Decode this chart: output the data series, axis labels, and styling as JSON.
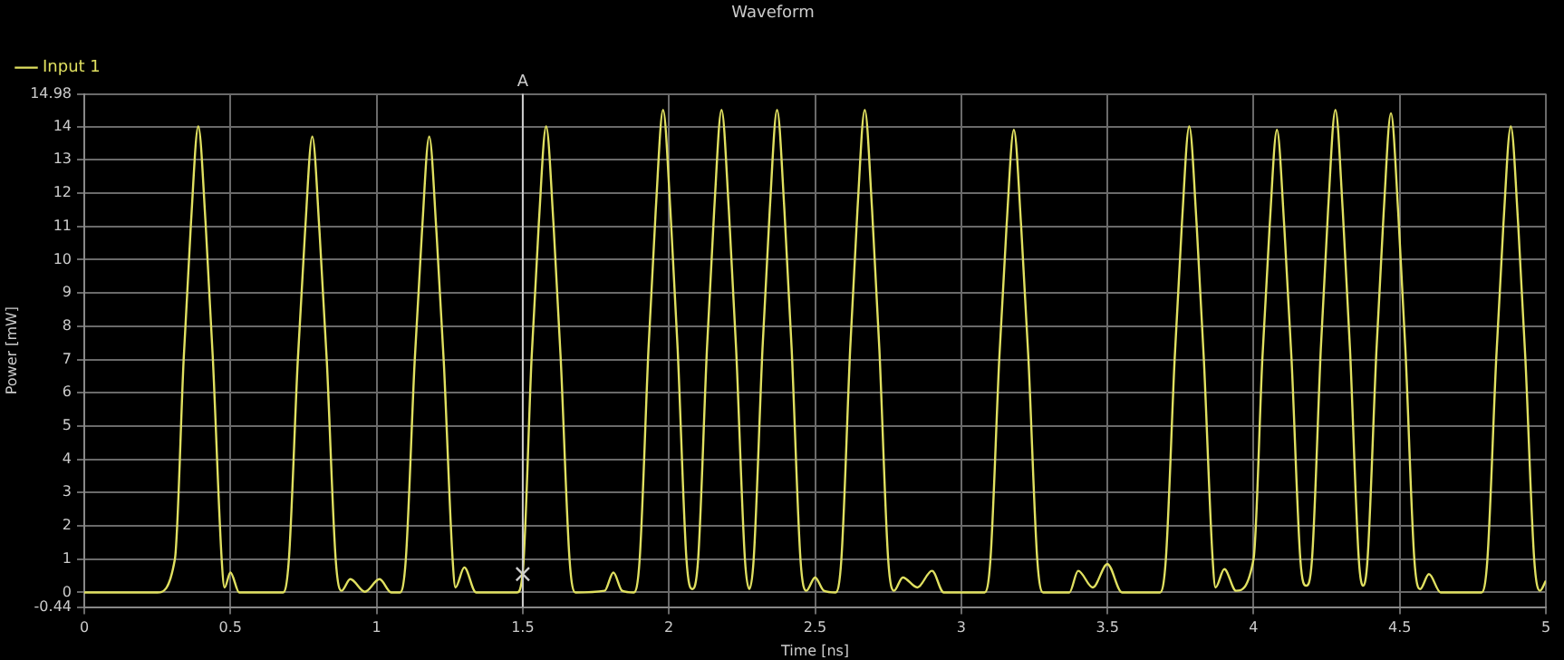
{
  "chart_data": {
    "type": "line",
    "title": "Waveform",
    "xlabel": "Time [ns]",
    "ylabel": "Power [mW]",
    "xlim": [
      0,
      5
    ],
    "xticks": [
      0,
      0.5,
      1,
      1.5,
      2,
      2.5,
      3,
      3.5,
      4,
      4.5,
      5
    ],
    "ylim": [
      -0.44,
      14.98
    ],
    "yticks": [
      -0.44,
      0,
      1,
      2,
      3,
      4,
      5,
      6,
      7,
      8,
      9,
      10,
      11,
      12,
      13,
      14,
      14.98
    ],
    "grid": true,
    "legend": "top left",
    "marker": "none",
    "line_style": "solid",
    "ref_lines": [
      {
        "axis": "x",
        "value": 1.5,
        "label": "A",
        "color": "#cccccc"
      }
    ],
    "series": [
      {
        "name": "Input 1",
        "color": "#e0e060",
        "x": [
          0,
          0.25,
          0.31,
          0.34,
          0.365,
          0.39,
          0.415,
          0.44,
          0.47,
          0.48,
          0.5,
          0.53,
          0.68,
          0.7,
          0.73,
          0.755,
          0.78,
          0.805,
          0.83,
          0.86,
          0.88,
          0.91,
          0.96,
          1.01,
          1.05,
          1.08,
          1.1,
          1.13,
          1.155,
          1.18,
          1.205,
          1.23,
          1.26,
          1.27,
          1.3,
          1.34,
          1.48,
          1.5,
          1.53,
          1.555,
          1.58,
          1.605,
          1.63,
          1.66,
          1.68,
          1.78,
          1.81,
          1.84,
          1.88,
          1.9,
          1.93,
          1.955,
          1.98,
          2.005,
          2.03,
          2.06,
          2.08,
          2.1,
          2.13,
          2.155,
          2.18,
          2.205,
          2.23,
          2.26,
          2.275,
          2.29,
          2.32,
          2.345,
          2.37,
          2.395,
          2.42,
          2.45,
          2.47,
          2.5,
          2.53,
          2.57,
          2.59,
          2.62,
          2.645,
          2.67,
          2.695,
          2.72,
          2.75,
          2.77,
          2.8,
          2.85,
          2.9,
          2.94,
          3.08,
          3.1,
          3.13,
          3.155,
          3.18,
          3.205,
          3.23,
          3.26,
          3.28,
          3.37,
          3.4,
          3.45,
          3.5,
          3.55,
          3.68,
          3.7,
          3.73,
          3.755,
          3.78,
          3.805,
          3.83,
          3.86,
          3.87,
          3.9,
          3.94,
          4.0,
          4.03,
          4.055,
          4.08,
          4.105,
          4.13,
          4.16,
          4.18,
          4.2,
          4.23,
          4.255,
          4.28,
          4.305,
          4.33,
          4.36,
          4.375,
          4.39,
          4.42,
          4.445,
          4.47,
          4.495,
          4.52,
          4.55,
          4.57,
          4.6,
          4.64,
          4.78,
          4.8,
          4.83,
          4.855,
          4.88,
          4.905,
          4.93,
          4.96,
          4.98,
          5.0
        ],
        "values": [
          0,
          0,
          1.0,
          7.0,
          11.1,
          14.0,
          11.1,
          7.0,
          1.0,
          0.15,
          0.6,
          0,
          0,
          1.0,
          6.9,
          10.8,
          13.7,
          10.8,
          6.9,
          1.0,
          0.05,
          0.4,
          0.02,
          0.4,
          0,
          0,
          1.0,
          6.9,
          10.8,
          13.7,
          10.8,
          6.9,
          1.0,
          0.15,
          0.75,
          0,
          0,
          0.6,
          7.0,
          11.1,
          14.0,
          11.1,
          7.0,
          1.0,
          0,
          0.05,
          0.6,
          0.05,
          0,
          1.0,
          7.3,
          11.5,
          14.5,
          11.5,
          7.3,
          1.0,
          0.1,
          1.0,
          7.3,
          11.5,
          14.5,
          11.5,
          7.3,
          1.0,
          0.1,
          1.0,
          7.3,
          11.5,
          14.5,
          11.5,
          7.3,
          1.0,
          0.05,
          0.45,
          0.05,
          0,
          1.0,
          7.3,
          11.5,
          14.5,
          11.5,
          7.3,
          1.0,
          0.05,
          0.45,
          0.15,
          0.65,
          0,
          0,
          1.0,
          7.0,
          11.0,
          13.9,
          11.0,
          7.0,
          1.0,
          0,
          0,
          0.65,
          0.15,
          0.85,
          0,
          0,
          1.0,
          7.0,
          11.1,
          14.0,
          11.1,
          7.0,
          1.0,
          0.15,
          0.7,
          0.05,
          1.0,
          7.0,
          11.0,
          13.9,
          11.0,
          7.0,
          1.0,
          0.2,
          1.0,
          7.3,
          11.5,
          14.5,
          11.5,
          7.3,
          1.0,
          0.2,
          1.0,
          7.2,
          11.4,
          14.4,
          11.4,
          7.2,
          1.0,
          0.1,
          0.55,
          0,
          0,
          1.0,
          7.0,
          11.1,
          14.0,
          11.1,
          7.0,
          1.0,
          0.05,
          0.35
        ]
      },
      {
        "color": "#cccccc",
        "type": "scatter",
        "marker": "cross",
        "x": [
          1.5
        ],
        "values": [
          0.55
        ]
      }
    ]
  }
}
